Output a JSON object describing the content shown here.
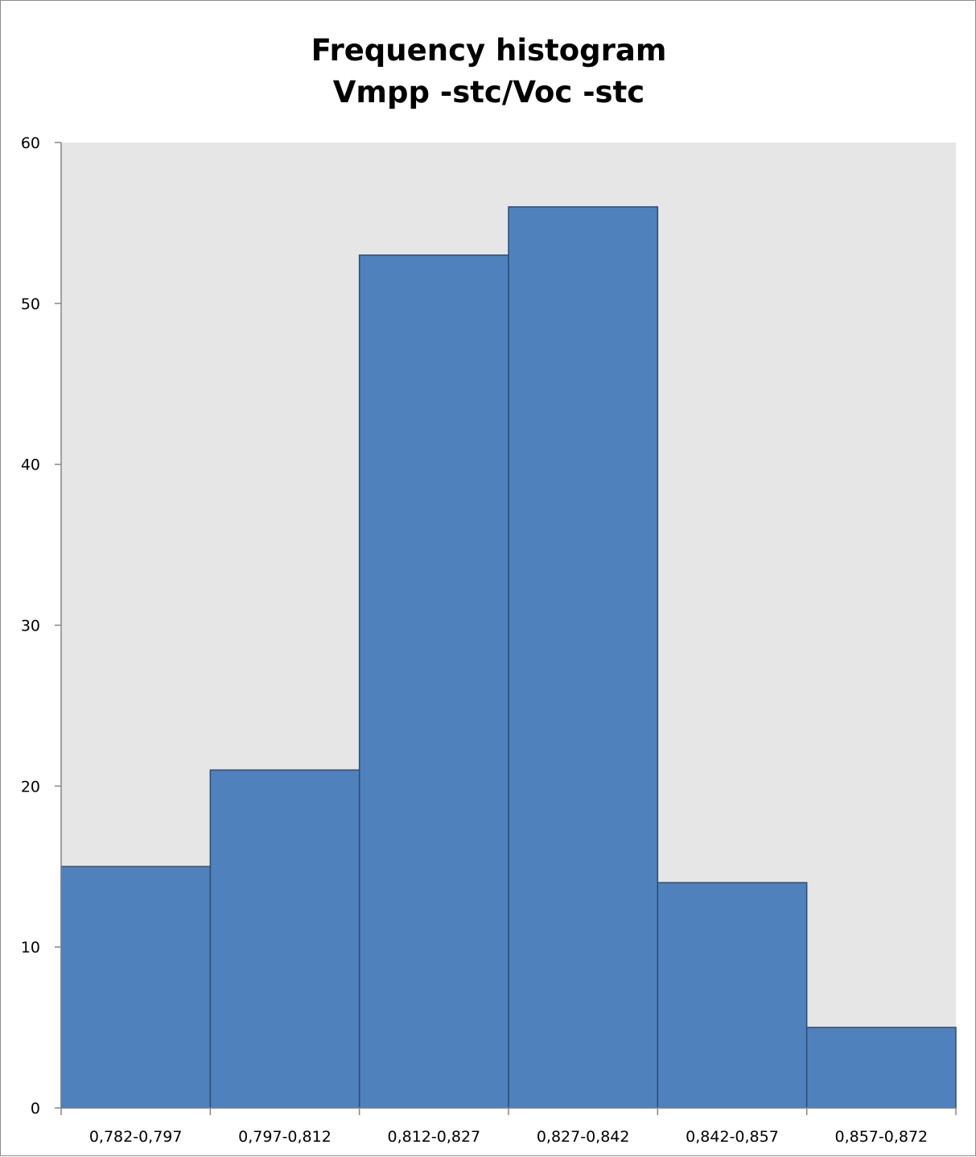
{
  "chart_data": {
    "type": "bar",
    "title": "Frequency histogram",
    "subtitle": "Vmpp -stc/Voc -stc",
    "xlabel": "",
    "ylabel": "",
    "categories": [
      "0,782-0,797",
      "0,797-0,812",
      "0,812-0,827",
      "0,827-0,842",
      "0,842-0,857",
      "0,857-0,872"
    ],
    "values": [
      15,
      21,
      53,
      56,
      14,
      5
    ],
    "ylim": [
      0,
      60
    ],
    "yticks": [
      "0",
      "10",
      "20",
      "30",
      "40",
      "50",
      "60"
    ],
    "grid": false,
    "legend": "none",
    "colors": {
      "bar_fill": "#4f81bd",
      "bar_stroke": "#2c4d75",
      "plot_background": "#e6e6e6",
      "axis": "#868686"
    }
  }
}
